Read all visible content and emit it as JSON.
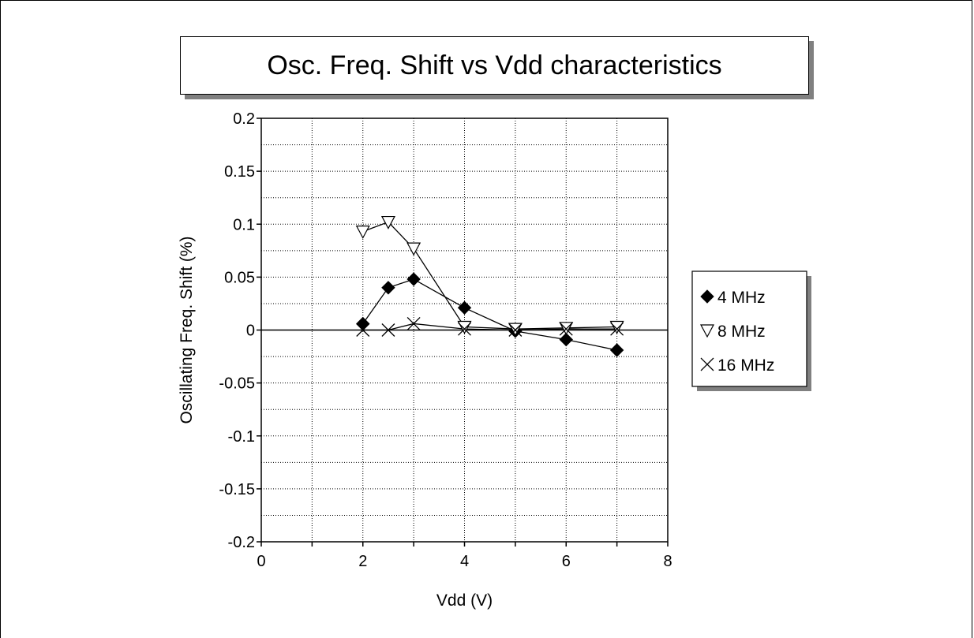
{
  "chart_data": {
    "type": "line",
    "title": "Osc. Freq. Shift vs Vdd characteristics",
    "xlabel": "Vdd (V)",
    "ylabel": "Oscillating Freq. Shift (%)",
    "xlim": [
      0,
      8
    ],
    "ylim": [
      -0.2,
      0.2
    ],
    "xticks": [
      "0",
      "2",
      "4",
      "6",
      "8"
    ],
    "yticks": [
      "0.2",
      "0.15",
      "0.1",
      "0.05",
      "0",
      "-0.05",
      "-0.1",
      "-0.15",
      "-0.2"
    ],
    "grid": true,
    "legend_position": "right",
    "series": [
      {
        "name": "4 MHz",
        "marker": "diamond",
        "color": "#000000",
        "x": [
          2,
          2.5,
          3,
          4,
          5,
          6,
          7
        ],
        "y": [
          0.006,
          0.04,
          0.048,
          0.021,
          -0.001,
          -0.009,
          -0.019
        ]
      },
      {
        "name": "8 MHz",
        "marker": "triangle-down",
        "color": "#000000",
        "x": [
          2,
          2.5,
          3,
          4,
          5,
          6,
          7
        ],
        "y": [
          0.093,
          0.102,
          0.077,
          0.003,
          0.001,
          0.002,
          0.003
        ]
      },
      {
        "name": "16 MHz",
        "marker": "x",
        "color": "#000000",
        "x": [
          2,
          2.5,
          3,
          4,
          5,
          6,
          7
        ],
        "y": [
          0.0,
          0.0,
          0.006,
          0.001,
          0.0,
          0.001,
          0.001
        ]
      }
    ]
  }
}
